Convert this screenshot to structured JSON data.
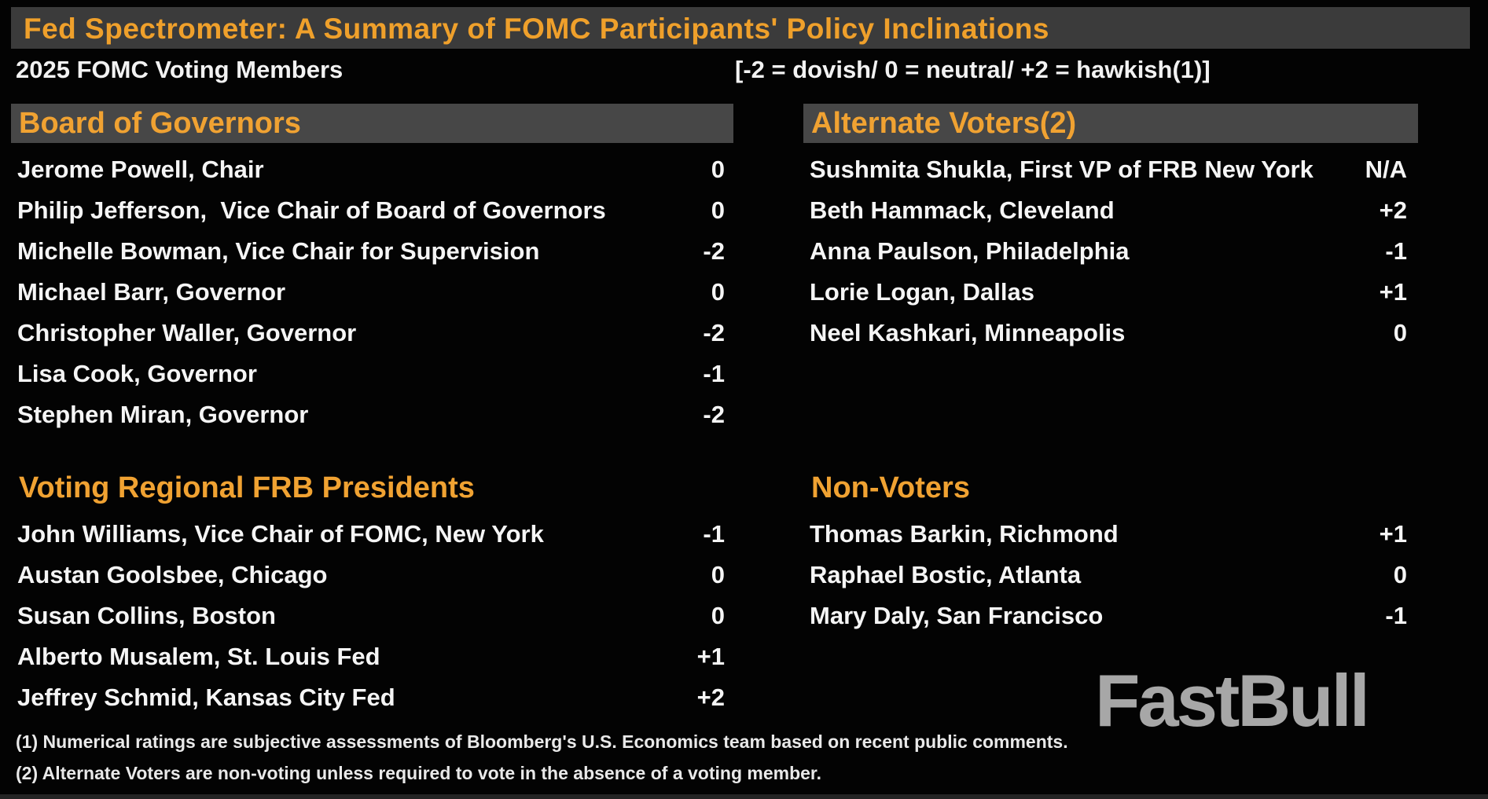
{
  "colors": {
    "background": "#030303",
    "title_band_gray": "#3b3b3b",
    "section_band_gray": "#474747",
    "accent_orange": "#f0a232",
    "text_white": "#f5f5f5",
    "watermark_gray": "#a7a7a7"
  },
  "header": {
    "title": "Fed Spectrometer: A Summary of FOMC Participants' Policy Inclinations",
    "subtitle_left": "2025 FOMC Voting Members",
    "subtitle_right": "[-2 = dovish/ 0 = neutral/ +2 = hawkish(1)]"
  },
  "chart_data": {
    "type": "table",
    "title": "Fed Spectrometer: A Summary of FOMC Participants' Policy Inclinations",
    "subtitle": "2025 FOMC Voting Members",
    "rating_scale": "-2 = dovish / 0 = neutral / +2 = hawkish",
    "sections": [
      {
        "title": "Board of Governors",
        "banded": true,
        "column": "left",
        "rows": [
          {
            "name": "Jerome Powell, Chair",
            "rating": "0"
          },
          {
            "name": "Philip Jefferson,  Vice Chair of Board of Governors",
            "rating": "0"
          },
          {
            "name": "Michelle Bowman, Vice Chair for Supervision",
            "rating": "-2"
          },
          {
            "name": "Michael Barr, Governor",
            "rating": "0"
          },
          {
            "name": "Christopher Waller, Governor",
            "rating": "-2"
          },
          {
            "name": "Lisa Cook, Governor",
            "rating": "-1"
          },
          {
            "name": "Stephen Miran, Governor",
            "rating": "-2"
          }
        ]
      },
      {
        "title": "Alternate Voters(2)",
        "banded": true,
        "column": "right",
        "rows": [
          {
            "name": "Sushmita Shukla, First VP of FRB New York",
            "rating": "N/A"
          },
          {
            "name": "Beth Hammack, Cleveland",
            "rating": "+2"
          },
          {
            "name": "Anna Paulson, Philadelphia",
            "rating": "-1"
          },
          {
            "name": "Lorie Logan, Dallas",
            "rating": "+1"
          },
          {
            "name": "Neel Kashkari, Minneapolis",
            "rating": "0"
          }
        ]
      },
      {
        "title": "Voting Regional FRB Presidents",
        "banded": false,
        "column": "left",
        "rows": [
          {
            "name": "John Williams, Vice Chair of FOMC, New York",
            "rating": "-1"
          },
          {
            "name": "Austan Goolsbee, Chicago",
            "rating": "0"
          },
          {
            "name": "Susan Collins, Boston",
            "rating": "0"
          },
          {
            "name": "Alberto Musalem, St. Louis Fed",
            "rating": "+1"
          },
          {
            "name": "Jeffrey Schmid, Kansas City Fed",
            "rating": "+2"
          }
        ]
      },
      {
        "title": "Non-Voters",
        "banded": false,
        "column": "right",
        "rows": [
          {
            "name": "Thomas Barkin, Richmond",
            "rating": "+1"
          },
          {
            "name": "Raphael Bostic, Atlanta",
            "rating": "0"
          },
          {
            "name": "Mary Daly, San Francisco",
            "rating": "-1"
          }
        ]
      }
    ]
  },
  "footnotes": [
    "(1) Numerical ratings are subjective assessments of Bloomberg's U.S. Economics team based on recent public comments.",
    "(2) Alternate Voters are non-voting unless required to vote in the absence of a voting member."
  ],
  "watermark": "FastBull"
}
